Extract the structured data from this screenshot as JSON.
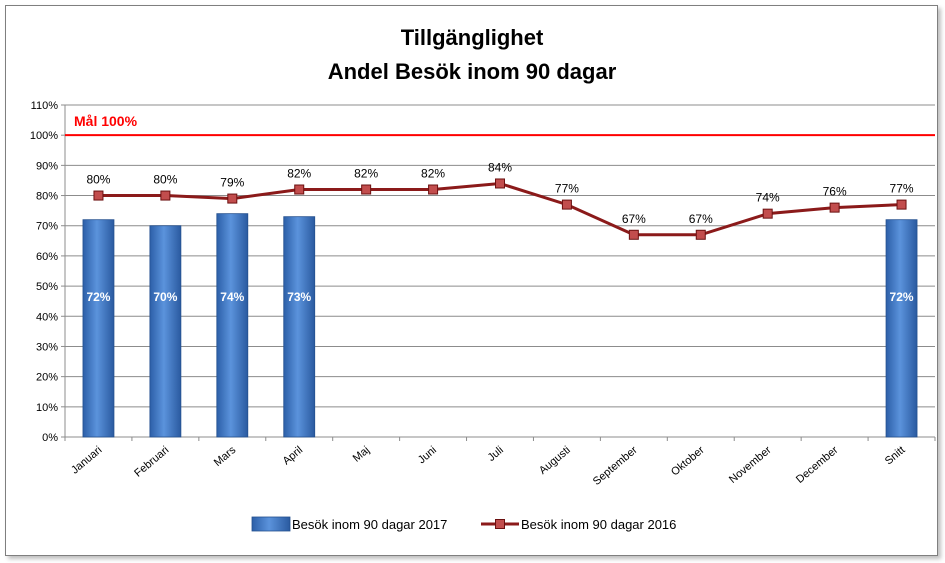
{
  "chart_data": {
    "type": "bar",
    "title": "Tillgänglighet",
    "subtitle": "Andel Besök inom 90 dagar",
    "categories": [
      "Januari",
      "Februari",
      "Mars",
      "April",
      "Maj",
      "Juni",
      "Juli",
      "Augusti",
      "September",
      "Oktober",
      "November",
      "December",
      "Snitt"
    ],
    "ylim": [
      0,
      110
    ],
    "yticks": [
      "0%",
      "10%",
      "20%",
      "30%",
      "40%",
      "50%",
      "60%",
      "70%",
      "80%",
      "90%",
      "100%",
      "110%"
    ],
    "grid": true,
    "legend_position": "bottom",
    "goal": {
      "label": "Mål 100%",
      "value": 100,
      "color": "#ff0000"
    },
    "series": [
      {
        "name": "Besök inom 90 dagar 2017",
        "kind": "bar",
        "color": "#3f78c8",
        "values": [
          72,
          70,
          74,
          73,
          null,
          null,
          null,
          null,
          null,
          null,
          null,
          null,
          72
        ],
        "labels": [
          "72%",
          "70%",
          "74%",
          "73%",
          "",
          "",
          "",
          "",
          "",
          "",
          "",
          "",
          "72%"
        ]
      },
      {
        "name": "Besök inom 90 dagar 2016",
        "kind": "line",
        "color": "#8b1a1a",
        "values": [
          80,
          80,
          79,
          82,
          82,
          82,
          84,
          77,
          67,
          67,
          74,
          76,
          77
        ],
        "labels": [
          "80%",
          "80%",
          "79%",
          "82%",
          "82%",
          "82%",
          "84%",
          "77%",
          "67%",
          "67%",
          "74%",
          "76%",
          "77%"
        ]
      }
    ]
  }
}
